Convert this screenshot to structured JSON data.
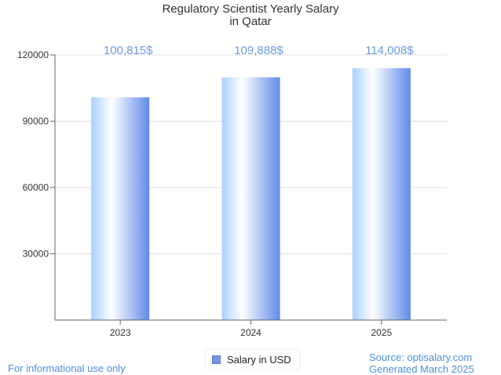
{
  "chart_data": {
    "type": "bar",
    "title": [
      "Regulatory Scientist Yearly Salary",
      "in Qatar"
    ],
    "categories": [
      "2023",
      "2024",
      "2025"
    ],
    "series": [
      {
        "name": "Salary in USD",
        "values": [
          100815,
          109888,
          114008
        ]
      }
    ],
    "data_labels": [
      "100,815$",
      "109,888$",
      "114,008$"
    ],
    "y_ticks": [
      "30000",
      "60000",
      "90000",
      "120000"
    ],
    "ylim": [
      0,
      120000
    ],
    "grid": true,
    "legend_position": "bottom-center",
    "colors": {
      "bar_light": "#ffffff",
      "bar_mid": "#a9d0ff",
      "bar_dark": "#5f8ae8",
      "label": "#6a9be0",
      "grid": "#e0e0e0",
      "axis": "#666666"
    }
  },
  "legend": {
    "label": "Salary in USD",
    "color": "#6f95dd"
  },
  "footer": {
    "disclaimer": "For informational use only",
    "source": "Source: optisalary.com",
    "generated": "Generated March 2025"
  }
}
